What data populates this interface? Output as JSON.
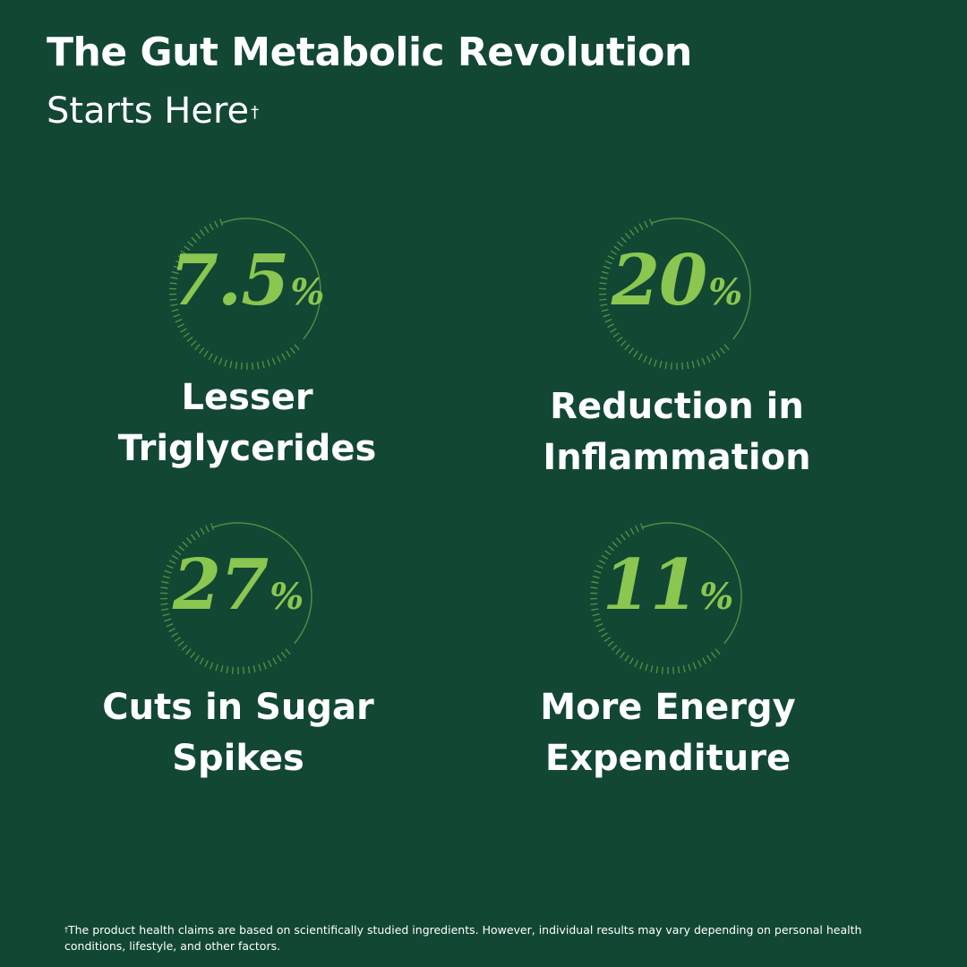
{
  "header": {
    "title": "The Gut Metabolic Revolution",
    "subtitle": "Starts Here",
    "subtitle_mark": "†"
  },
  "stats": [
    {
      "value": "7.5",
      "unit": "%",
      "label_line1": "Lesser",
      "label_line2": "Triglycerides"
    },
    {
      "value": "20",
      "unit": "%",
      "label_line1": "Reduction in",
      "label_line2": "Inflammation"
    },
    {
      "value": "27",
      "unit": "%",
      "label_line1": "Cuts in Sugar",
      "label_line2": "Spikes"
    },
    {
      "value": "11",
      "unit": "%",
      "label_line1": "More Energy",
      "label_line2": "Expenditure"
    }
  ],
  "footnote": {
    "mark": "†",
    "text": "The product health claims are based on scientifically studied ingredients. However, individual results may vary depending on personal health conditions, lifestyle, and other factors."
  },
  "colors": {
    "background": "#124734",
    "accent_green": "#8ac650",
    "ring_green": "#5e9a45",
    "text": "#ffffff"
  },
  "icons": {
    "stat_ring": "dashed-circle-ring-icon"
  }
}
